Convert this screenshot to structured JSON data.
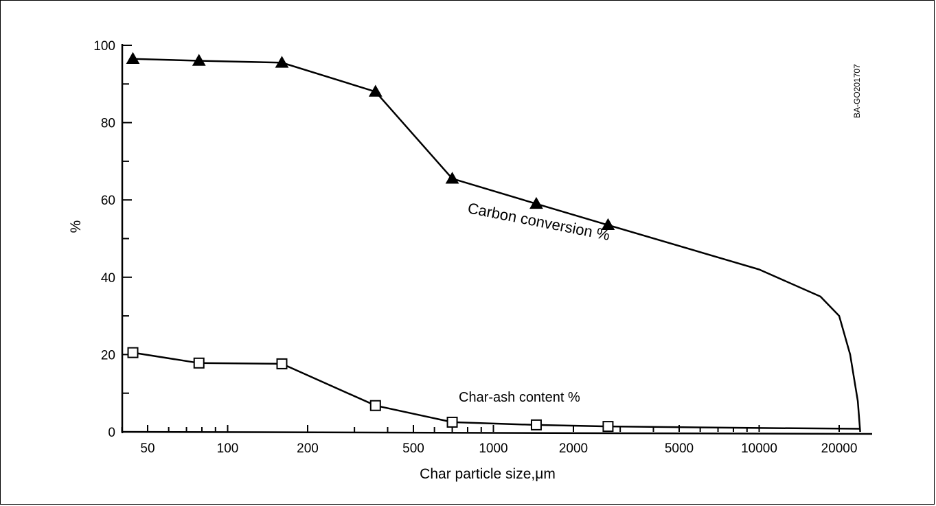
{
  "chart_data": {
    "type": "line",
    "x_scale": "log",
    "xlabel": "Char particle size,μm",
    "ylabel": "%",
    "xlim": [
      40,
      28000
    ],
    "ylim": [
      0,
      100
    ],
    "x_ticks": [
      50,
      100,
      200,
      500,
      1000,
      2000,
      5000,
      10000,
      20000
    ],
    "x_tick_labels": [
      "50",
      "100",
      "200",
      "500",
      "1000",
      "2000",
      "5000",
      "10000",
      "20000"
    ],
    "y_ticks": [
      0,
      20,
      40,
      60,
      80,
      100
    ],
    "y_tick_labels": [
      "0",
      "20",
      "40",
      "60",
      "80",
      "100"
    ],
    "grid": false,
    "legend": "none",
    "series": [
      {
        "name": "Carbon conversion %",
        "marker": "filled-triangle",
        "points": [
          [
            44,
            96.5
          ],
          [
            78,
            96
          ],
          [
            160,
            95.5
          ],
          [
            360,
            88
          ],
          [
            700,
            65.5
          ],
          [
            1450,
            59
          ],
          [
            2700,
            53.5
          ]
        ],
        "curve_extension": [
          [
            2700,
            53.5
          ],
          [
            10000,
            42
          ],
          [
            17000,
            35
          ],
          [
            20000,
            30
          ],
          [
            22000,
            20
          ],
          [
            23500,
            8
          ],
          [
            24000,
            0
          ]
        ]
      },
      {
        "name": "Char-ash content %",
        "marker": "open-square",
        "points": [
          [
            44,
            20.5
          ],
          [
            78,
            17.8
          ],
          [
            160,
            17.6
          ],
          [
            360,
            6.8
          ],
          [
            700,
            2.5
          ],
          [
            1450,
            1.8
          ],
          [
            2700,
            1.4
          ]
        ],
        "curve_extension": [
          [
            2700,
            1.4
          ],
          [
            10000,
            1.0
          ],
          [
            24000,
            0.8
          ]
        ]
      }
    ],
    "annotations": [
      "Carbon conversion %",
      "Char-ash content %"
    ],
    "figure_id": "BA-GO201707"
  }
}
